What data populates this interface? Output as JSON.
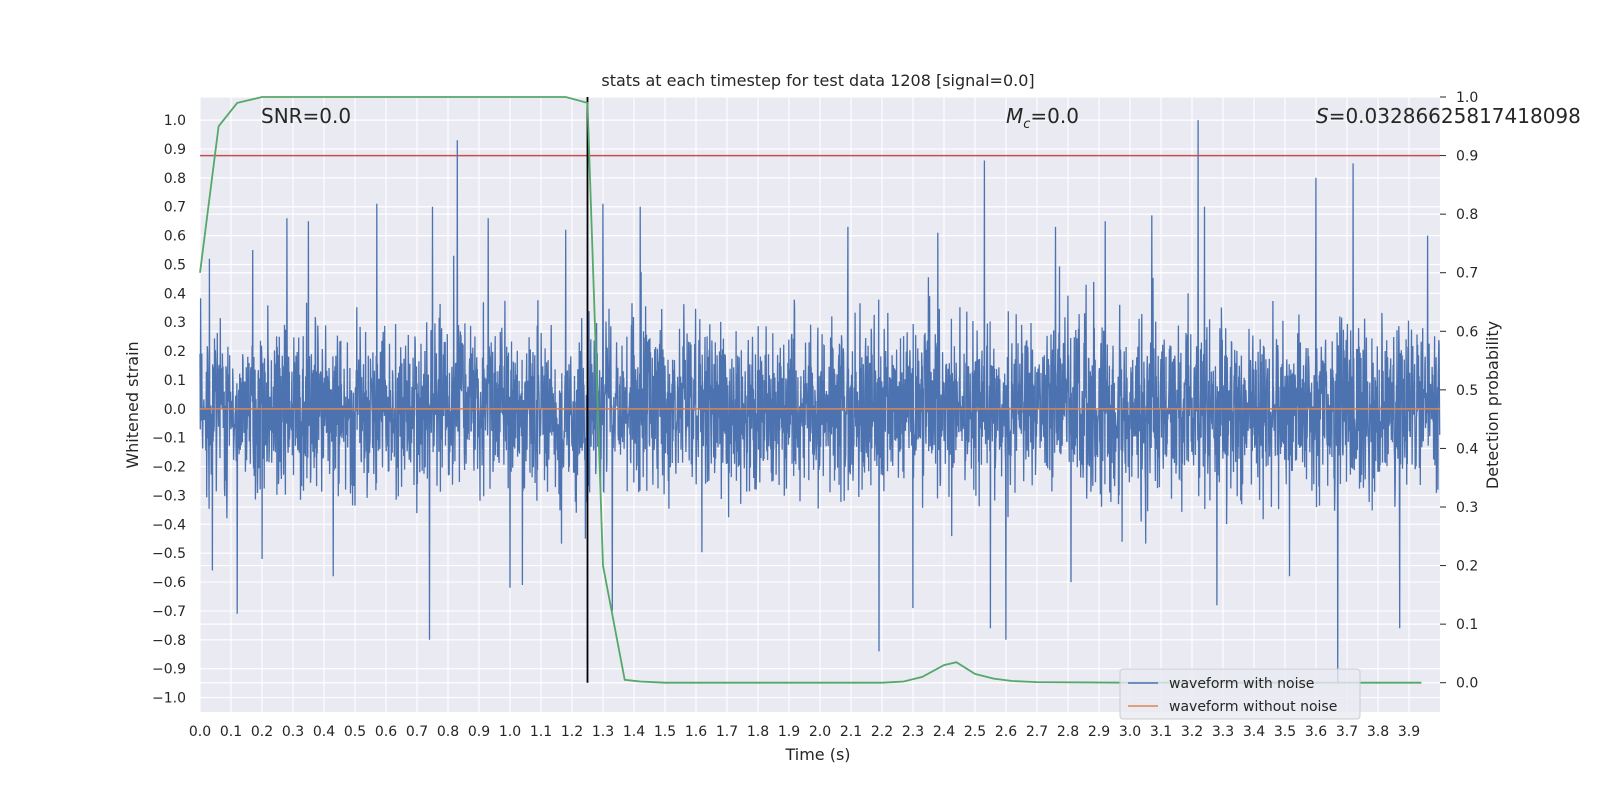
{
  "chart_data": {
    "type": "line",
    "title": "stats at each timestep for test data 1208 [signal=0.0]",
    "xlabel": "Time (s)",
    "ylabel_left": "Whitened strain",
    "ylabel_right": "Detection probability",
    "xlim": [
      0.0,
      4.0
    ],
    "ylim_left": [
      -1.05,
      1.08
    ],
    "ylim_right": [
      -0.05,
      1.0
    ],
    "grid": true,
    "legend_placement": "lower right",
    "x_ticks": [
      "0.0",
      "0.1",
      "0.2",
      "0.3",
      "0.4",
      "0.5",
      "0.6",
      "0.7",
      "0.8",
      "0.9",
      "1.0",
      "1.1",
      "1.2",
      "1.3",
      "1.4",
      "1.5",
      "1.6",
      "1.7",
      "1.8",
      "1.9",
      "2.0",
      "2.1",
      "2.2",
      "2.3",
      "2.4",
      "2.5",
      "2.6",
      "2.7",
      "2.8",
      "2.9",
      "3.0",
      "3.1",
      "3.2",
      "3.3",
      "3.4",
      "3.5",
      "3.6",
      "3.7",
      "3.8",
      "3.9"
    ],
    "y_ticks_left": [
      "1.0",
      "0.9",
      "0.8",
      "0.7",
      "0.6",
      "0.5",
      "0.4",
      "0.3",
      "0.2",
      "0.1",
      "0.0",
      "−0.1",
      "−0.2",
      "−0.3",
      "−0.4",
      "−0.5",
      "−0.6",
      "−0.7",
      "−0.8",
      "−0.9",
      "−1.0"
    ],
    "y_ticks_right": [
      "1.0",
      "0.9",
      "0.8",
      "0.7",
      "0.6",
      "0.5",
      "0.4",
      "0.3",
      "0.2",
      "0.1",
      "0.0"
    ],
    "annotations": {
      "snr": "SNR=0.0",
      "mc_symbol": "M",
      "mc_sub": "c",
      "mc_value": "=0.0",
      "s_symbol": "S",
      "s_value": "=0.03286625817418098"
    },
    "series": [
      {
        "name": "waveform with noise",
        "color": "#4c72b0",
        "axis": "left",
        "note_envelope_samples": 4096,
        "spikes": [
          [
            0.03,
            0.52
          ],
          [
            0.04,
            -0.56
          ],
          [
            0.12,
            -0.71
          ],
          [
            0.17,
            0.55
          ],
          [
            0.2,
            -0.52
          ],
          [
            0.28,
            0.66
          ],
          [
            0.35,
            0.65
          ],
          [
            0.43,
            -0.58
          ],
          [
            0.57,
            0.71
          ],
          [
            0.74,
            -0.8
          ],
          [
            0.75,
            0.7
          ],
          [
            0.83,
            0.93
          ],
          [
            0.93,
            0.66
          ],
          [
            1.0,
            -0.62
          ],
          [
            1.04,
            -0.61
          ],
          [
            1.18,
            0.62
          ],
          [
            1.3,
            0.71
          ],
          [
            1.33,
            -0.7
          ],
          [
            1.42,
            0.7
          ],
          [
            2.09,
            0.63
          ],
          [
            2.19,
            -0.84
          ],
          [
            2.3,
            -0.69
          ],
          [
            2.38,
            0.61
          ],
          [
            2.53,
            0.86
          ],
          [
            2.55,
            -0.76
          ],
          [
            2.6,
            -0.8
          ],
          [
            2.76,
            0.63
          ],
          [
            2.81,
            -0.6
          ],
          [
            2.92,
            0.65
          ],
          [
            3.07,
            0.67
          ],
          [
            3.22,
            1.0
          ],
          [
            3.24,
            0.7
          ],
          [
            3.28,
            -0.68
          ],
          [
            3.6,
            0.8
          ],
          [
            3.67,
            -0.95
          ],
          [
            3.72,
            0.85
          ],
          [
            3.87,
            -0.76
          ],
          [
            3.96,
            0.6
          ]
        ]
      },
      {
        "name": "waveform without noise",
        "color": "#dd8452",
        "axis": "left",
        "value": 0.0
      },
      {
        "name": "detection probability",
        "color": "#55a868",
        "axis": "right",
        "x": [
          0.0,
          0.06,
          0.12,
          0.2,
          0.3,
          0.6,
          0.9,
          1.18,
          1.25,
          1.3,
          1.37,
          1.42,
          1.5,
          2.0,
          2.2,
          2.27,
          2.33,
          2.4,
          2.44,
          2.5,
          2.56,
          2.62,
          2.7,
          3.0,
          3.5,
          3.94
        ],
        "y": [
          0.7,
          0.95,
          0.99,
          1.0,
          1.0,
          1.0,
          1.0,
          1.0,
          0.99,
          0.2,
          0.005,
          0.002,
          0.0,
          0.0,
          0.0,
          0.002,
          0.01,
          0.03,
          0.035,
          0.015,
          0.007,
          0.003,
          0.001,
          0.0,
          0.0,
          0.0
        ]
      }
    ],
    "threshold_line": {
      "color": "#c44e52",
      "axis": "right",
      "value": 0.9
    },
    "marker_line": {
      "color": "#000000",
      "x": 1.25
    }
  }
}
